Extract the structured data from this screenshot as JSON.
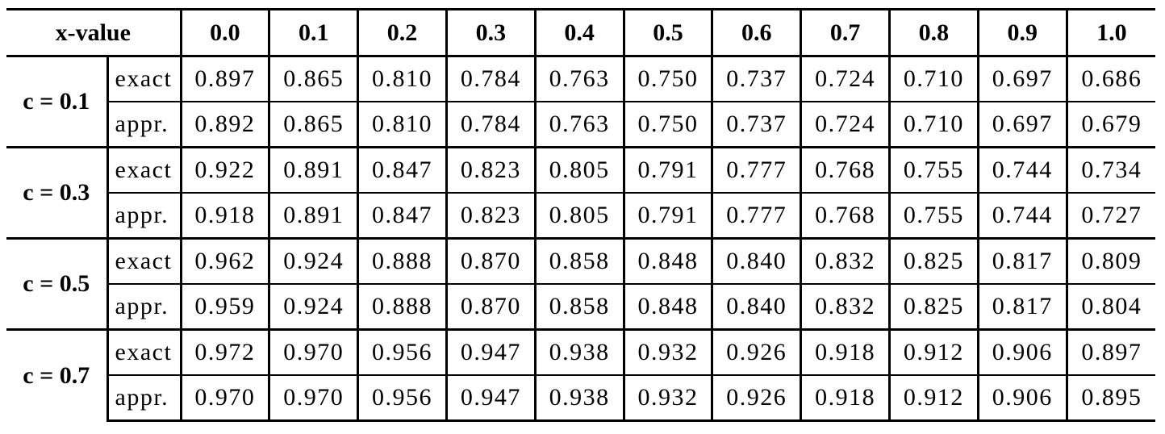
{
  "table": {
    "header": [
      "x-value",
      "0.0",
      "0.1",
      "0.2",
      "0.3",
      "0.4",
      "0.5",
      "0.6",
      "0.7",
      "0.8",
      "0.9",
      "1.0"
    ],
    "groups": [
      {
        "label": "c = 0.1",
        "rows": [
          {
            "label": "exact",
            "values": [
              "0.897",
              "0.865",
              "0.810",
              "0.784",
              "0.763",
              "0.750",
              "0.737",
              "0.724",
              "0.710",
              "0.697",
              "0.686"
            ]
          },
          {
            "label": "appr.",
            "values": [
              "0.892",
              "0.865",
              "0.810",
              "0.784",
              "0.763",
              "0.750",
              "0.737",
              "0.724",
              "0.710",
              "0.697",
              "0.679"
            ]
          }
        ]
      },
      {
        "label": "c = 0.3",
        "rows": [
          {
            "label": "exact",
            "values": [
              "0.922",
              "0.891",
              "0.847",
              "0.823",
              "0.805",
              "0.791",
              "0.777",
              "0.768",
              "0.755",
              "0.744",
              "0.734"
            ]
          },
          {
            "label": "appr.",
            "values": [
              "0.918",
              "0.891",
              "0.847",
              "0.823",
              "0.805",
              "0.791",
              "0.777",
              "0.768",
              "0.755",
              "0.744",
              "0.727"
            ]
          }
        ]
      },
      {
        "label": "c = 0.5",
        "rows": [
          {
            "label": "exact",
            "values": [
              "0.962",
              "0.924",
              "0.888",
              "0.870",
              "0.858",
              "0.848",
              "0.840",
              "0.832",
              "0.825",
              "0.817",
              "0.809"
            ]
          },
          {
            "label": "appr.",
            "values": [
              "0.959",
              "0.924",
              "0.888",
              "0.870",
              "0.858",
              "0.848",
              "0.840",
              "0.832",
              "0.825",
              "0.817",
              "0.804"
            ]
          }
        ]
      },
      {
        "label": "c = 0.7",
        "rows": [
          {
            "label": "exact",
            "values": [
              "0.972",
              "0.970",
              "0.956",
              "0.947",
              "0.938",
              "0.932",
              "0.926",
              "0.918",
              "0.912",
              "0.906",
              "0.897"
            ]
          },
          {
            "label": "appr.",
            "values": [
              "0.970",
              "0.970",
              "0.956",
              "0.947",
              "0.938",
              "0.932",
              "0.926",
              "0.918",
              "0.912",
              "0.906",
              "0.895"
            ]
          }
        ]
      }
    ]
  }
}
